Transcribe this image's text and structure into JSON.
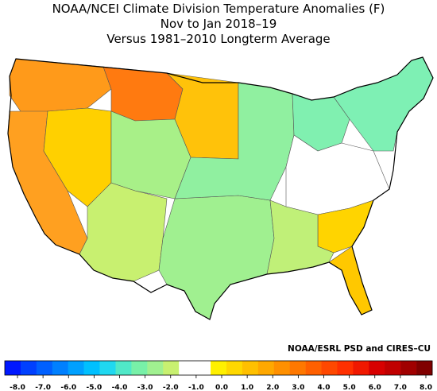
{
  "titles": {
    "line1": "NOAA/NCEI Climate Division Temperature Anomalies (F)",
    "line2": "Nov to Jan 2018–19",
    "line3": "Versus 1981–2010 Longterm Average"
  },
  "credit": "NOAA/ESRL PSD and CIRES–CU",
  "legend": {
    "labels": [
      "-8.0",
      "-7.0",
      "-6.0",
      "-5.0",
      "-4.0",
      "-3.0",
      "-2.0",
      "-1.0",
      "0.0",
      "1.0",
      "2.0",
      "3.0",
      "4.0",
      "5.0",
      "6.0",
      "7.0",
      "8.0"
    ],
    "colors": [
      "#0018ff",
      "#0040ff",
      "#0060ff",
      "#0080ff",
      "#00a0ff",
      "#00c0ff",
      "#20d8f0",
      "#50e8c8",
      "#78f0a8",
      "#a0f090",
      "#c8f070",
      "#ffffff",
      "#ffffff",
      "#fff000",
      "#ffd800",
      "#ffc000",
      "#ffa800",
      "#ff9000",
      "#ff7800",
      "#ff6000",
      "#ff4800",
      "#ff3000",
      "#f01800",
      "#d80000",
      "#c00000",
      "#a00000",
      "#800000"
    ]
  },
  "regions": [
    {
      "name": "pacific-northwest",
      "color": "#ff9a1a"
    },
    {
      "name": "northern-rockies",
      "color": "#ff7a10"
    },
    {
      "name": "northern-plains",
      "color": "#ffc20a"
    },
    {
      "name": "california-coast",
      "color": "#ffa020"
    },
    {
      "name": "great-basin",
      "color": "#ffd000"
    },
    {
      "name": "southwest",
      "color": "#c8f070"
    },
    {
      "name": "central-rockies",
      "color": "#a8f088"
    },
    {
      "name": "southern-plains",
      "color": "#a0f090"
    },
    {
      "name": "midwest",
      "color": "#90f0a0"
    },
    {
      "name": "great-lakes",
      "color": "#80f0b0"
    },
    {
      "name": "ohio-valley",
      "color": "#ffffff"
    },
    {
      "name": "northeast",
      "color": "#7ef0b4"
    },
    {
      "name": "southeast-coast",
      "color": "#ffd400"
    },
    {
      "name": "florida",
      "color": "#ffc800"
    },
    {
      "name": "gulf-coast",
      "color": "#c0f078"
    }
  ]
}
